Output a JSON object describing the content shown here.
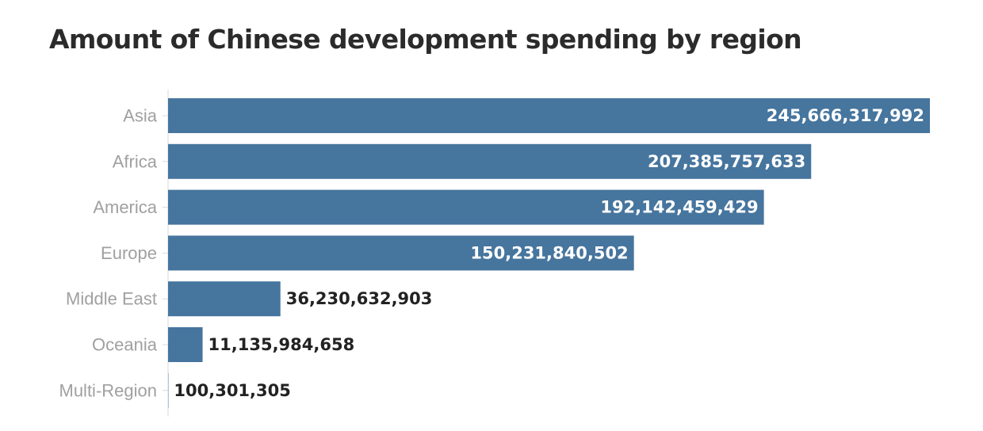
{
  "chart_data": {
    "type": "bar",
    "orientation": "horizontal",
    "title": "Amount of Chinese development spending by region",
    "xlabel": "",
    "ylabel": "",
    "categories": [
      "Asia",
      "Africa",
      "America",
      "Europe",
      "Middle East",
      "Oceania",
      "Multi-Region"
    ],
    "values": [
      245666317992,
      207385757633,
      192142459429,
      150231840502,
      36230632903,
      11135984658,
      100301305
    ],
    "value_labels": [
      "245,666,317,992",
      "207,385,757,633",
      "192,142,459,429",
      "150,231,840,502",
      "36,230,632,903",
      "11,135,984,658",
      "100,301,305"
    ],
    "xlim": [
      0,
      245666317992
    ],
    "grid": false,
    "legend": "none",
    "colors": {
      "bar": "#46759e",
      "value_inside": "#ffffff",
      "value_outside": "#222222",
      "category_label": "#a0a0a0",
      "axis": "#d9d9d9",
      "title": "#2b2b2b"
    }
  }
}
